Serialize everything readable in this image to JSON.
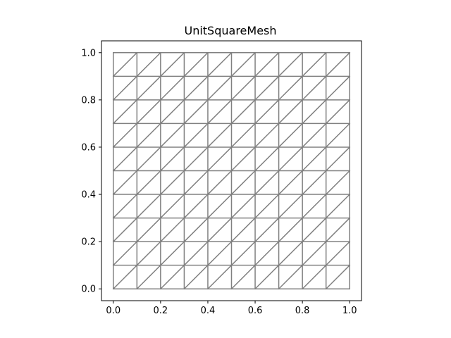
{
  "chart_data": {
    "type": "mesh",
    "title": "UnitSquareMesh",
    "xlabel": "",
    "ylabel": "",
    "xlim": [
      -0.05,
      1.05
    ],
    "ylim": [
      -0.05,
      1.05
    ],
    "nx": 10,
    "ny": 10,
    "diagonal": "right",
    "edge_color": "#808080",
    "grid": false,
    "xticks": [
      0.0,
      0.2,
      0.4,
      0.6,
      0.8,
      1.0
    ],
    "xtick_labels": [
      "0.0",
      "0.2",
      "0.4",
      "0.6",
      "0.8",
      "1.0"
    ],
    "yticks": [
      0.0,
      0.2,
      0.4,
      0.6,
      0.8,
      1.0
    ],
    "ytick_labels": [
      "0.0",
      "0.2",
      "0.4",
      "0.6",
      "0.8",
      "1.0"
    ]
  }
}
